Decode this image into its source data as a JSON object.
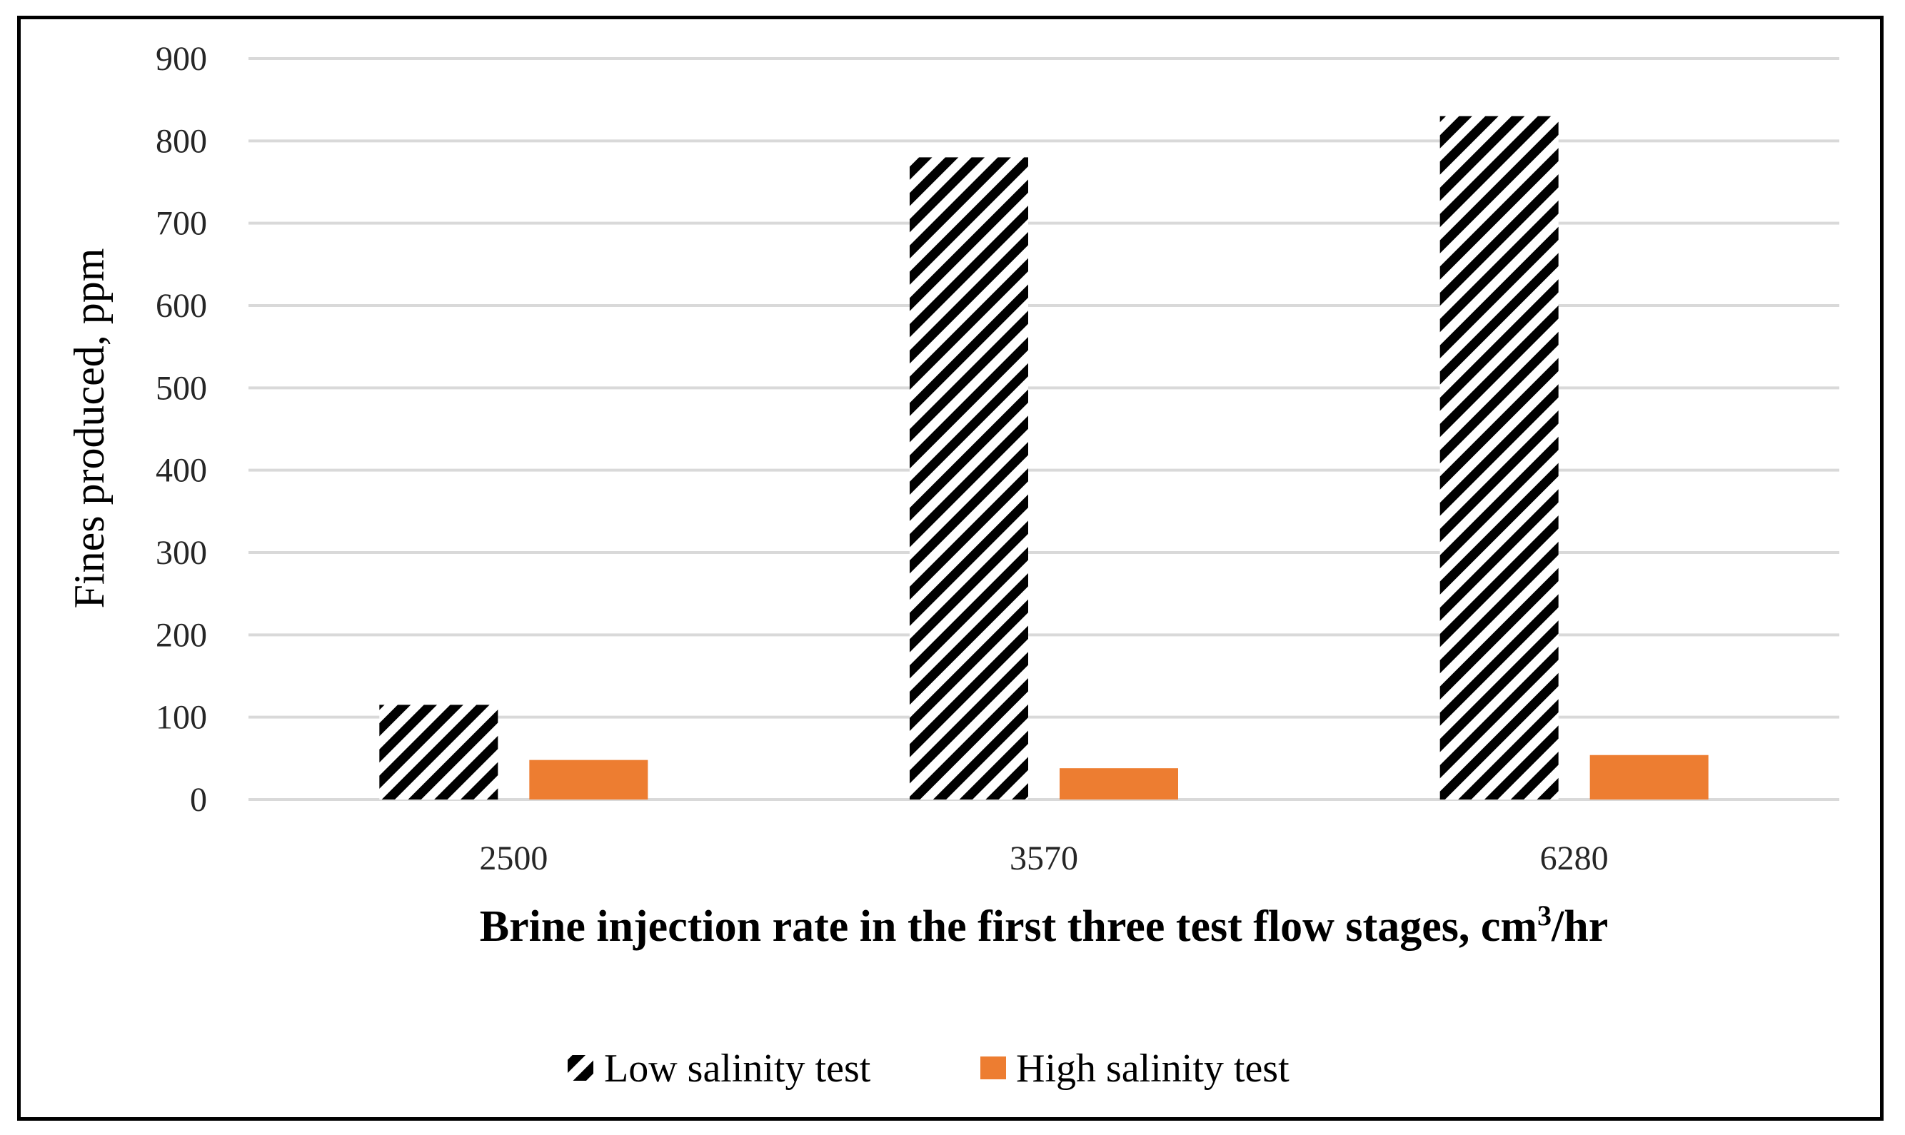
{
  "chart_data": {
    "type": "bar",
    "title": "",
    "categories": [
      "2500",
      "3570",
      "6280"
    ],
    "series": [
      {
        "name": "Low salinity test",
        "values": [
          115,
          780,
          830
        ],
        "color": "#000000",
        "pattern": "diagonal-stripes"
      },
      {
        "name": "High salinity test",
        "values": [
          48,
          38,
          54
        ],
        "color": "#ED7D31",
        "pattern": "solid"
      }
    ],
    "xlabel": "Brine injection rate in the first three test flow stages, cm",
    "xlabel_superscript": "3",
    "xlabel_suffix": "/hr",
    "ylabel": "Fines produced, ppm",
    "ylim": [
      0,
      900
    ],
    "yticks": [
      "0",
      "100",
      "200",
      "300",
      "400",
      "500",
      "600",
      "700",
      "800",
      "900"
    ],
    "grid": true,
    "legend_position": "bottom"
  }
}
